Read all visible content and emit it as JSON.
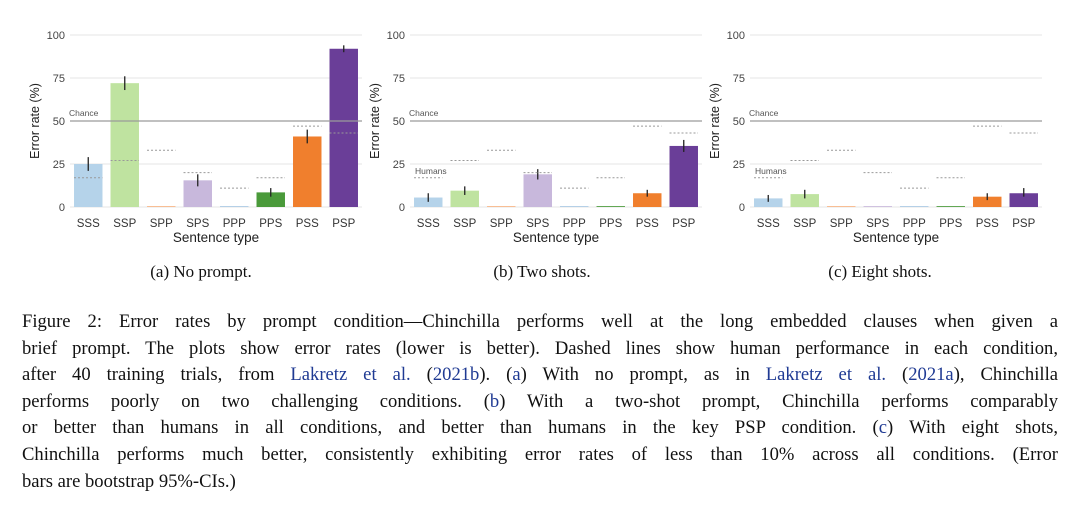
{
  "figure": {
    "subcaptions": [
      "(a) No prompt.",
      "(b) Two shots.",
      "(c) Eight shots."
    ],
    "caption": {
      "lines": [
        [
          {
            "t": "Figure 2: Error rates by prompt condition—Chinchilla performs well at the long embedded clauses when given a"
          }
        ],
        [
          {
            "t": "brief prompt. The plots show error rates (lower is better). Dashed lines show human performance in each condition,"
          }
        ],
        [
          {
            "t": "after 40 training trials, from "
          },
          {
            "t": "Lakretz et al.",
            "c": true
          },
          {
            "t": " ("
          },
          {
            "t": "2021b",
            "c": true
          },
          {
            "t": ").  ("
          },
          {
            "t": "a",
            "c": true
          },
          {
            "t": ") With no prompt, as in "
          },
          {
            "t": "Lakretz et al.",
            "c": true
          },
          {
            "t": " ("
          },
          {
            "t": "2021a",
            "c": true
          },
          {
            "t": "), Chinchilla"
          }
        ],
        [
          {
            "t": "performs poorly on two challenging conditions.  ("
          },
          {
            "t": "b",
            "c": true
          },
          {
            "t": ") With a two-shot prompt, Chinchilla performs comparably"
          }
        ],
        [
          {
            "t": "or better than humans in all conditions, and better than humans in the key PSP condition.  ("
          },
          {
            "t": "c",
            "c": true
          },
          {
            "t": ") With eight shots,"
          }
        ],
        [
          {
            "t": "Chinchilla performs much better, consistently exhibiting error rates of less than 10% across all conditions. (Error"
          }
        ],
        [
          {
            "t": "bars are bootstrap 95%-CIs.)"
          }
        ]
      ]
    }
  },
  "chart_data": [
    {
      "type": "bar",
      "xlabel": "Sentence type",
      "ylabel": "Error rate (%)",
      "ylim": [
        0,
        100
      ],
      "yticks": [
        0,
        25,
        50,
        75,
        100
      ],
      "categories": [
        "SSS",
        "SSP",
        "SPP",
        "SPS",
        "PPP",
        "PPS",
        "PSS",
        "PSP"
      ],
      "values": [
        25,
        72,
        0.5,
        15.5,
        0.5,
        8.5,
        41,
        92
      ],
      "error_bars": [
        [
          21,
          29
        ],
        [
          68,
          76
        ],
        [
          0,
          1
        ],
        [
          12,
          19
        ],
        [
          0,
          1
        ],
        [
          6,
          11
        ],
        [
          37,
          45
        ],
        [
          90,
          94
        ]
      ],
      "human_values": [
        17,
        27,
        33,
        20,
        11,
        17,
        47,
        43
      ],
      "chance": 50,
      "chance_label": "Chance",
      "humans_label": "",
      "colors": [
        "#b5d3ea",
        "#bfe3a0",
        "#f7b483",
        "#c8b8dc",
        "#a9c8e3",
        "#4a9a3a",
        "#f07f2d",
        "#6a3e98"
      ]
    },
    {
      "type": "bar",
      "xlabel": "Sentence type",
      "ylabel": "Error rate (%)",
      "ylim": [
        0,
        100
      ],
      "yticks": [
        0,
        25,
        50,
        75,
        100
      ],
      "categories": [
        "SSS",
        "SSP",
        "SPP",
        "SPS",
        "PPP",
        "PPS",
        "PSS",
        "PSP"
      ],
      "values": [
        5.5,
        9.5,
        0.5,
        19,
        0.5,
        0.5,
        8,
        35.5
      ],
      "error_bars": [
        [
          3,
          8
        ],
        [
          7,
          12
        ],
        [
          0,
          1
        ],
        [
          16,
          22
        ],
        [
          0,
          1
        ],
        [
          0,
          1
        ],
        [
          6,
          10
        ],
        [
          32,
          39
        ]
      ],
      "human_values": [
        17,
        27,
        33,
        20,
        11,
        17,
        47,
        43
      ],
      "chance": 50,
      "chance_label": "Chance",
      "humans_label": "Humans",
      "colors": [
        "#b5d3ea",
        "#bfe3a0",
        "#f7b483",
        "#c8b8dc",
        "#a9c8e3",
        "#4a9a3a",
        "#f07f2d",
        "#6a3e98"
      ]
    },
    {
      "type": "bar",
      "xlabel": "Sentence type",
      "ylabel": "Error rate (%)",
      "ylim": [
        0,
        100
      ],
      "yticks": [
        0,
        25,
        50,
        75,
        100
      ],
      "categories": [
        "SSS",
        "SSP",
        "SPP",
        "SPS",
        "PPP",
        "PPS",
        "PSS",
        "PSP"
      ],
      "values": [
        5,
        7.5,
        0.5,
        0.5,
        0.5,
        0.5,
        6,
        8
      ],
      "error_bars": [
        [
          3,
          7
        ],
        [
          5,
          10
        ],
        [
          0,
          1
        ],
        [
          0,
          1
        ],
        [
          0,
          1
        ],
        [
          0,
          1
        ],
        [
          4,
          8
        ],
        [
          6,
          11
        ]
      ],
      "human_values": [
        17,
        27,
        33,
        20,
        11,
        17,
        47,
        43
      ],
      "chance": 50,
      "chance_label": "Chance",
      "humans_label": "Humans",
      "colors": [
        "#b5d3ea",
        "#bfe3a0",
        "#f7b483",
        "#c8b8dc",
        "#a9c8e3",
        "#4a9a3a",
        "#f07f2d",
        "#6a3e98"
      ]
    }
  ]
}
